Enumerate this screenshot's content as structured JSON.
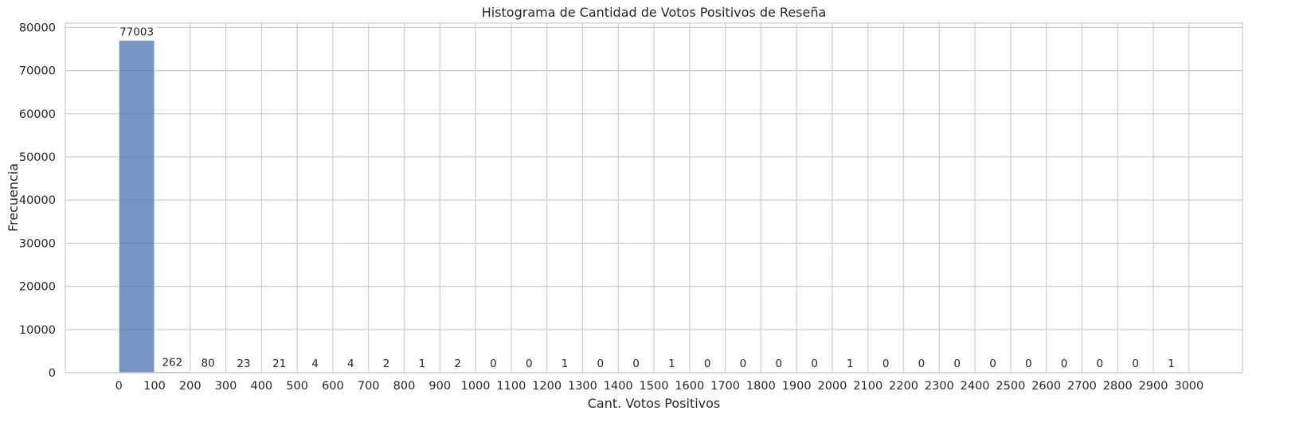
{
  "chart_data": {
    "type": "bar",
    "title": "Histograma de Cantidad de Votos Positivos de Reseña",
    "xlabel": "Cant. Votos Positivos",
    "ylabel": "Frecuencia",
    "bin_edges": [
      0,
      100,
      200,
      300,
      400,
      500,
      600,
      700,
      800,
      900,
      1000,
      1100,
      1200,
      1300,
      1400,
      1500,
      1600,
      1700,
      1800,
      1900,
      2000,
      2100,
      2200,
      2300,
      2400,
      2500,
      2600,
      2700,
      2800,
      2900,
      3000
    ],
    "values": [
      77003,
      262,
      80,
      23,
      21,
      4,
      4,
      2,
      1,
      2,
      0,
      0,
      1,
      0,
      0,
      1,
      0,
      0,
      0,
      0,
      1,
      0,
      0,
      0,
      0,
      0,
      0,
      0,
      0,
      1
    ],
    "xticks": [
      "0",
      "100",
      "200",
      "300",
      "400",
      "500",
      "600",
      "700",
      "800",
      "900",
      "1000",
      "1100",
      "1200",
      "1300",
      "1400",
      "1500",
      "1600",
      "1700",
      "1800",
      "1900",
      "2000",
      "2100",
      "2200",
      "2300",
      "2400",
      "2500",
      "2600",
      "2700",
      "2800",
      "2900",
      "3000"
    ],
    "yticks": [
      0,
      10000,
      20000,
      30000,
      40000,
      50000,
      60000,
      70000,
      80000
    ],
    "ylim": [
      0,
      81000
    ],
    "xlim": [
      -150,
      3150
    ],
    "grid": true,
    "bar_color": "#4c72b0"
  }
}
